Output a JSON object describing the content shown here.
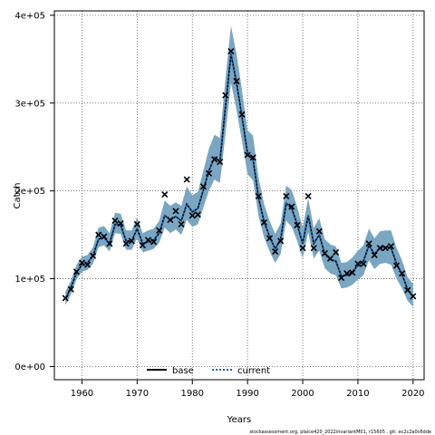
{
  "chart_data": {
    "type": "line",
    "xlabel": "Years",
    "ylabel": "Catch",
    "xlim": [
      1955,
      2022
    ],
    "ylim": [
      -15000,
      405000
    ],
    "xticks": [
      1960,
      1970,
      1980,
      1990,
      2000,
      2010,
      2020
    ],
    "yticks": [
      0,
      100000,
      200000,
      300000,
      400000
    ],
    "ytick_labels": [
      "0e+00",
      "1e+05",
      "2e+05",
      "3e+05",
      "4e+05"
    ],
    "grid": true,
    "legend_position": "bottom-center",
    "footnote": "stockassessment.org, plaice420_2022invariantM01, r15605 , git: ec2c2a0c6dde",
    "x": [
      1957,
      1958,
      1959,
      1960,
      1961,
      1962,
      1963,
      1964,
      1965,
      1966,
      1967,
      1968,
      1969,
      1970,
      1971,
      1972,
      1973,
      1974,
      1975,
      1976,
      1977,
      1978,
      1979,
      1980,
      1981,
      1982,
      1983,
      1984,
      1985,
      1986,
      1987,
      1988,
      1989,
      1990,
      1991,
      1992,
      1993,
      1994,
      1995,
      1996,
      1997,
      1998,
      1999,
      2000,
      2001,
      2002,
      2003,
      2004,
      2005,
      2006,
      2007,
      2008,
      2009,
      2010,
      2011,
      2012,
      2013,
      2014,
      2015,
      2016,
      2017,
      2018,
      2019,
      2020
    ],
    "observed": [
      78000,
      88000,
      108000,
      118000,
      116000,
      126000,
      150000,
      148000,
      140000,
      166000,
      163000,
      140000,
      143000,
      162000,
      138000,
      144000,
      142000,
      155000,
      196000,
      167000,
      177000,
      162000,
      213000,
      172000,
      173000,
      205000,
      220000,
      236000,
      233000,
      309000,
      359000,
      325000,
      287000,
      241000,
      238000,
      194000,
      164000,
      146000,
      131000,
      143000,
      194000,
      182000,
      161000,
      135000,
      194000,
      135000,
      154000,
      129000,
      123000,
      130000,
      101000,
      106000,
      107000,
      117000,
      117000,
      140000,
      127000,
      135000,
      135000,
      137000,
      115000,
      106000,
      87000,
      80000
    ],
    "series": [
      {
        "name": "base",
        "color": "#000000",
        "dash": "solid",
        "values": [
          77000,
          90000,
          107000,
          116000,
          118000,
          126000,
          145000,
          147000,
          140000,
          162000,
          161000,
          143000,
          143000,
          157000,
          140000,
          142000,
          144000,
          152000,
          172000,
          167000,
          171000,
          166000,
          185000,
          176000,
          180000,
          201000,
          223000,
          238000,
          234000,
          296000,
          356000,
          323000,
          285000,
          243000,
          236000,
          192000,
          165000,
          148000,
          134000,
          145000,
          186000,
          180000,
          162000,
          140000,
          172000,
          140000,
          150000,
          128000,
          122000,
          120000,
          103000,
          104000,
          108000,
          115000,
          120000,
          138000,
          128000,
          135000,
          136000,
          135000,
          117000,
          105000,
          88000,
          80000
        ]
      },
      {
        "name": "current",
        "color": "#1f5fa8",
        "dash": "dotted",
        "values": [
          77000,
          90000,
          107000,
          116000,
          118000,
          126000,
          145000,
          147000,
          140000,
          162000,
          161000,
          143000,
          143000,
          157000,
          140000,
          142000,
          144000,
          152000,
          172000,
          167000,
          171000,
          166000,
          185000,
          176000,
          180000,
          201000,
          223000,
          238000,
          234000,
          296000,
          356000,
          323000,
          285000,
          243000,
          236000,
          192000,
          165000,
          148000,
          134000,
          145000,
          186000,
          180000,
          162000,
          140000,
          172000,
          140000,
          150000,
          128000,
          122000,
          120000,
          103000,
          104000,
          108000,
          115000,
          120000,
          138000,
          128000,
          135000,
          136000,
          135000,
          117000,
          105000,
          88000,
          80000
        ]
      }
    ],
    "ci_lower": [
      70000,
      82000,
      99000,
      108000,
      110000,
      117000,
      136000,
      138000,
      131000,
      152000,
      151000,
      133000,
      133000,
      146000,
      130000,
      132000,
      134000,
      141000,
      158000,
      152000,
      156000,
      150000,
      167000,
      159000,
      162000,
      181000,
      200000,
      213000,
      209000,
      265000,
      323000,
      292000,
      257000,
      219000,
      212000,
      171000,
      147000,
      131000,
      118000,
      128000,
      166000,
      159000,
      143000,
      123000,
      153000,
      123000,
      132000,
      112000,
      106000,
      104000,
      89000,
      90000,
      93000,
      99000,
      104000,
      121000,
      111000,
      117000,
      118000,
      116000,
      100000,
      89000,
      75000,
      68000
    ],
    "ci_upper": [
      85000,
      98000,
      116000,
      125000,
      127000,
      136000,
      158000,
      160000,
      152000,
      175000,
      174000,
      155000,
      155000,
      170000,
      152000,
      155000,
      157000,
      166000,
      189000,
      183000,
      187000,
      183000,
      205000,
      195000,
      199000,
      223000,
      248000,
      264000,
      260000,
      328000,
      388000,
      356000,
      315000,
      269000,
      263000,
      215000,
      185000,
      166000,
      151000,
      163000,
      206000,
      201000,
      182000,
      158000,
      192000,
      158000,
      169000,
      145000,
      139000,
      137000,
      118000,
      119000,
      124000,
      132000,
      138000,
      157000,
      146000,
      154000,
      155000,
      155000,
      135000,
      121000,
      102000,
      94000
    ],
    "band_color": "#7aa6c2",
    "observed_marker": "x"
  }
}
